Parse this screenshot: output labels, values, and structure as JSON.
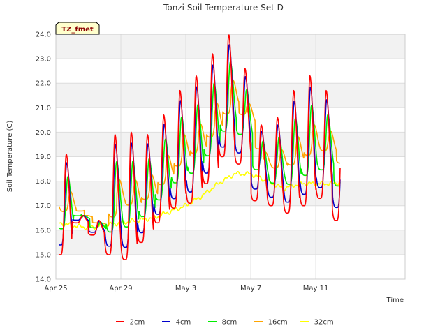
{
  "chart_data": {
    "type": "line",
    "title": "Tonzi Soil Temperature Set D",
    "xlabel": "Time",
    "ylabel": "Soil Temperature (C)",
    "badge": "TZ_fmet",
    "xlim": [
      0,
      21.5
    ],
    "ylim": [
      14.0,
      24.0
    ],
    "yticks": [
      14.0,
      15.0,
      16.0,
      17.0,
      18.0,
      19.0,
      20.0,
      21.0,
      22.0,
      23.0,
      24.0
    ],
    "xticks": [
      {
        "day": 0,
        "label": "Apr 25"
      },
      {
        "day": 4,
        "label": "Apr 29"
      },
      {
        "day": 8,
        "label": "May 3"
      },
      {
        "day": 12,
        "label": "May 7"
      },
      {
        "day": 16,
        "label": "May 11"
      }
    ],
    "grid": true,
    "legend_position": "bottom",
    "days": [
      {
        "min": 15.0,
        "max": 19.1
      },
      {
        "min": 16.3,
        "max": 16.6
      },
      {
        "min": 15.8,
        "max": 16.4
      },
      {
        "min": 15.0,
        "max": 19.9
      },
      {
        "min": 14.8,
        "max": 20.0
      },
      {
        "min": 15.5,
        "max": 19.9
      },
      {
        "min": 16.3,
        "max": 20.7
      },
      {
        "min": 16.9,
        "max": 21.7
      },
      {
        "min": 17.1,
        "max": 22.3
      },
      {
        "min": 17.9,
        "max": 23.2
      },
      {
        "min": 19.0,
        "max": 24.0
      },
      {
        "min": 18.7,
        "max": 22.6
      },
      {
        "min": 17.2,
        "max": 20.3
      },
      {
        "min": 17.0,
        "max": 20.6
      },
      {
        "min": 16.7,
        "max": 21.7
      },
      {
        "min": 17.0,
        "max": 22.3
      },
      {
        "min": 17.3,
        "max": 21.7
      },
      {
        "min": 16.4,
        "max": 21.3
      }
    ],
    "series": [
      {
        "name": "-2cm",
        "color": "#ff0000",
        "gain": 1.0,
        "lag": 0.0
      },
      {
        "name": "-4cm",
        "color": "#0000cc",
        "gain": 0.82,
        "lag": 0.03
      },
      {
        "name": "-8cm",
        "color": "#00ee00",
        "gain": 0.52,
        "lag": 0.1
      },
      {
        "name": "-16cm",
        "color": "#ffa500",
        "gain": 0.2,
        "lag": 0.26
      },
      {
        "name": "-32cm",
        "color": "#ffff00",
        "gain": 0.0,
        "lag": 0.0
      }
    ],
    "trend_32cm": [
      {
        "day": 0,
        "temp": 16.3
      },
      {
        "day": 2,
        "temp": 16.1
      },
      {
        "day": 4,
        "temp": 16.3
      },
      {
        "day": 6,
        "temp": 16.5
      },
      {
        "day": 8,
        "temp": 17.0
      },
      {
        "day": 9,
        "temp": 17.4
      },
      {
        "day": 10,
        "temp": 17.9
      },
      {
        "day": 11,
        "temp": 18.3
      },
      {
        "day": 12,
        "temp": 18.3
      },
      {
        "day": 13,
        "temp": 18.0
      },
      {
        "day": 14,
        "temp": 17.7
      },
      {
        "day": 15,
        "temp": 17.9
      },
      {
        "day": 16,
        "temp": 17.9
      },
      {
        "day": 17,
        "temp": 17.9
      },
      {
        "day": 17.5,
        "temp": 17.95
      }
    ],
    "end_day": 17.5
  }
}
